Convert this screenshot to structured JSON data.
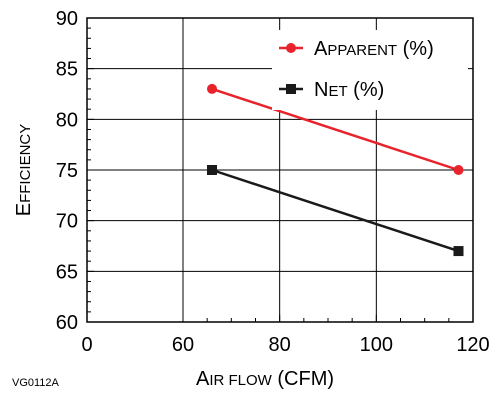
{
  "figure_id": "VG0112A",
  "chart_data": {
    "type": "line",
    "title": "",
    "xlabel": {
      "first": "A",
      "rest": "IR FLOW",
      "suffix": " (CFM)"
    },
    "ylabel": {
      "first": "E",
      "rest": "FFICIENCY"
    },
    "xlim": [
      0,
      120
    ],
    "ylim": [
      60,
      90
    ],
    "xticks": [
      "0",
      "60",
      "80",
      "100",
      "120"
    ],
    "yticks": [
      "60",
      "65",
      "70",
      "75",
      "80",
      "85",
      "90"
    ],
    "grid": true,
    "legend_position": "top-right",
    "series": [
      {
        "name": "Apparent (%)",
        "display": {
          "first": "A",
          "rest": "PPARENT",
          "suffix": " (%)"
        },
        "color": "#e8232b",
        "marker": "circle",
        "x": [
          66,
          117
        ],
        "y": [
          83,
          75
        ]
      },
      {
        "name": "Net (%)",
        "display": {
          "first": "N",
          "rest": "ET",
          "suffix": " (%)"
        },
        "color": "#1a1a1a",
        "marker": "square",
        "x": [
          66,
          117
        ],
        "y": [
          75,
          67
        ]
      }
    ]
  }
}
